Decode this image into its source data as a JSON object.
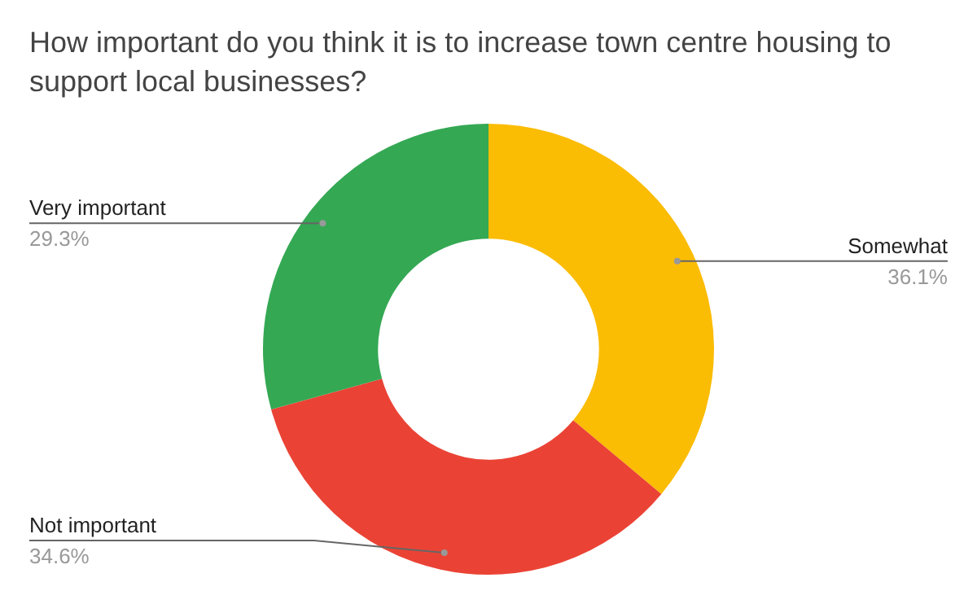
{
  "chart_data": {
    "type": "donut",
    "title": "How important do you think it is to increase town centre housing to support local businesses?",
    "categories": [
      "Somewhat",
      "Not important",
      "Very important"
    ],
    "values": [
      36.1,
      34.6,
      29.3
    ],
    "value_labels": [
      "36.1%",
      "34.6%",
      "29.3%"
    ],
    "colors": [
      "#fbbc04",
      "#ea4335",
      "#34a853"
    ],
    "legend": false
  }
}
